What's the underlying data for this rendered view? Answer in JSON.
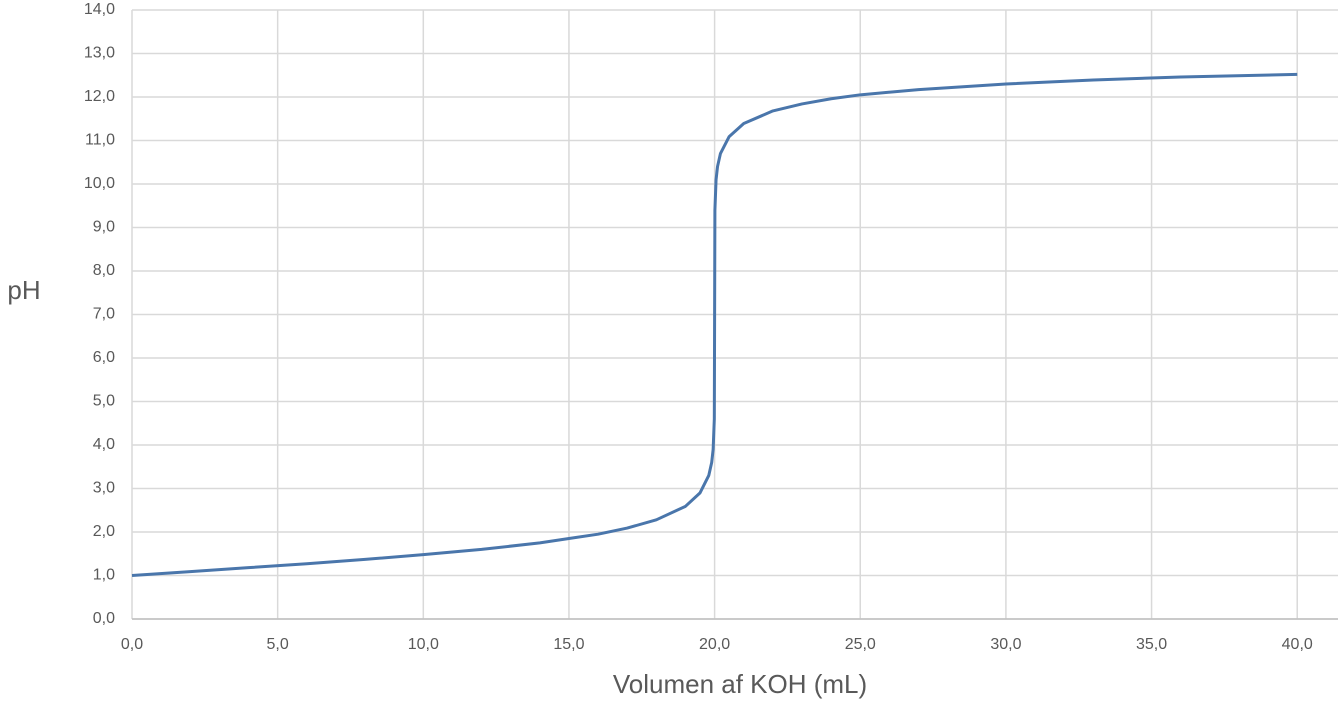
{
  "chart_data": {
    "type": "line",
    "x_label": "Volumen af KOH (mL)",
    "y_label": "pH",
    "grid": true,
    "xlim": [
      0,
      41.4
    ],
    "ylim": [
      0,
      14
    ],
    "xticks": [
      {
        "value": 0,
        "label": "0,0"
      },
      {
        "value": 5,
        "label": "5,0"
      },
      {
        "value": 10,
        "label": "10,0"
      },
      {
        "value": 15,
        "label": "15,0"
      },
      {
        "value": 20,
        "label": "20,0"
      },
      {
        "value": 25,
        "label": "25,0"
      },
      {
        "value": 30,
        "label": "30,0"
      },
      {
        "value": 35,
        "label": "35,0"
      },
      {
        "value": 40,
        "label": "40,0"
      }
    ],
    "yticks": [
      {
        "value": 0,
        "label": "0,0"
      },
      {
        "value": 1,
        "label": "1,0"
      },
      {
        "value": 2,
        "label": "2,0"
      },
      {
        "value": 3,
        "label": "3,0"
      },
      {
        "value": 4,
        "label": "4,0"
      },
      {
        "value": 5,
        "label": "5,0"
      },
      {
        "value": 6,
        "label": "6,0"
      },
      {
        "value": 7,
        "label": "7,0"
      },
      {
        "value": 8,
        "label": "8,0"
      },
      {
        "value": 9,
        "label": "9,0"
      },
      {
        "value": 10,
        "label": "10,0"
      },
      {
        "value": 11,
        "label": "11,0"
      },
      {
        "value": 12,
        "label": "12,0"
      },
      {
        "value": 13,
        "label": "13,0"
      },
      {
        "value": 14,
        "label": "14,0"
      }
    ],
    "x": [
      0,
      2,
      4,
      6,
      8,
      10,
      12,
      14,
      15,
      16,
      17,
      18,
      19,
      19.5,
      19.8,
      19.9,
      19.95,
      19.99,
      20,
      20.01,
      20.05,
      20.1,
      20.2,
      20.5,
      21,
      22,
      23,
      24,
      25,
      27,
      30,
      33,
      36,
      40
    ],
    "series": [
      {
        "color": "#4a76ab",
        "values": [
          1.0,
          1.09,
          1.18,
          1.27,
          1.37,
          1.48,
          1.6,
          1.75,
          1.85,
          1.95,
          2.09,
          2.28,
          2.59,
          2.9,
          3.3,
          3.6,
          3.9,
          4.6,
          7.0,
          9.4,
          10.1,
          10.4,
          10.7,
          11.09,
          11.39,
          11.68,
          11.84,
          11.96,
          12.05,
          12.17,
          12.3,
          12.39,
          12.46,
          12.52
        ]
      }
    ]
  }
}
